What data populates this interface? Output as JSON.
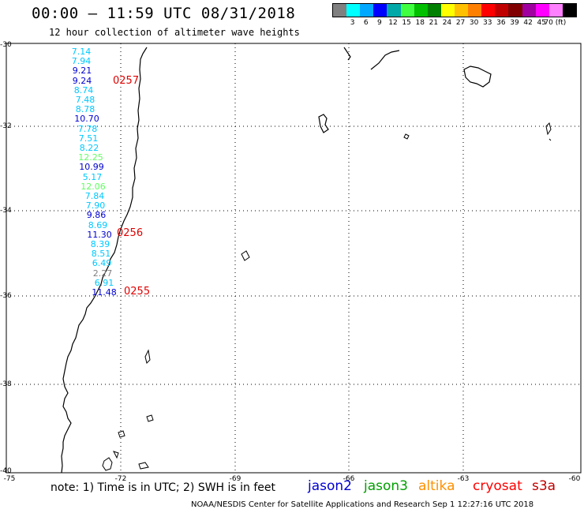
{
  "header": {
    "title": "00:00 – 11:59 UTC 08/31/2018",
    "subtitle": "12 hour collection of altimeter wave heights"
  },
  "legend": {
    "colors": [
      "#808080",
      "#00ffff",
      "#00a8ff",
      "#0000ff",
      "#00a8a8",
      "#40ff40",
      "#00c000",
      "#008000",
      "#ffff00",
      "#ffc000",
      "#ff8000",
      "#ff0000",
      "#c00000",
      "#800000",
      "#a000a0",
      "#ff00ff",
      "#ff80ff",
      "#000000"
    ],
    "labels": [
      "3",
      "6",
      "9",
      "12",
      "15",
      "18",
      "21",
      "24",
      "27",
      "30",
      "33",
      "36",
      "39",
      "42",
      "45",
      "70 (ft)"
    ]
  },
  "map": {
    "lat_labels": [
      "-30",
      "-32",
      "-34",
      "-36",
      "-38",
      "-40"
    ],
    "lon_labels": [
      "-75",
      "-72",
      "-69",
      "-66",
      "-63",
      "-60"
    ]
  },
  "tracks": {
    "track_a": {
      "values": [
        "7.14",
        "7.94",
        "9.21",
        "9.24",
        "8.74",
        "7.48",
        "8.78",
        "10.70",
        "7.78",
        "7.51",
        "8.22",
        "12.25",
        "10.99",
        "5.17",
        "12.06",
        "7.84",
        "7.90",
        "9.86",
        "8.69",
        "11.30",
        "8.39",
        "8.51",
        "6.49",
        "2.27",
        "6.91",
        "11.48"
      ],
      "colors": [
        "#00c8ff",
        "#00c8ff",
        "#0000d0",
        "#0000d0",
        "#00c8ff",
        "#00c8ff",
        "#00c8ff",
        "#0000d0",
        "#00c8ff",
        "#00c8ff",
        "#00c8ff",
        "#60ff60",
        "#0000d0",
        "#00c8ff",
        "#60ff60",
        "#00c8ff",
        "#00c8ff",
        "#0000d0",
        "#00c8ff",
        "#0000d0",
        "#00c8ff",
        "#00c8ff",
        "#00c8ff",
        "#808080",
        "#00c8ff",
        "#0000d0"
      ]
    },
    "pass_labels": [
      "0257",
      "0256",
      "0255"
    ]
  },
  "footer": {
    "note": "note: 1) Time is in UTC; 2) SWH is in feet",
    "satellites": [
      {
        "name": "jason2",
        "color": "#0000d0"
      },
      {
        "name": "jason3",
        "color": "#00a000"
      },
      {
        "name": "altika",
        "color": "#ff9000"
      },
      {
        "name": "cryosat",
        "color": "#ff0000"
      },
      {
        "name": "s3a",
        "color": "#c00000"
      }
    ],
    "credit": "NOAA/NESDIS Center for Satellite Applications and Research    Sep  1 12:27:16 UTC 2018"
  }
}
